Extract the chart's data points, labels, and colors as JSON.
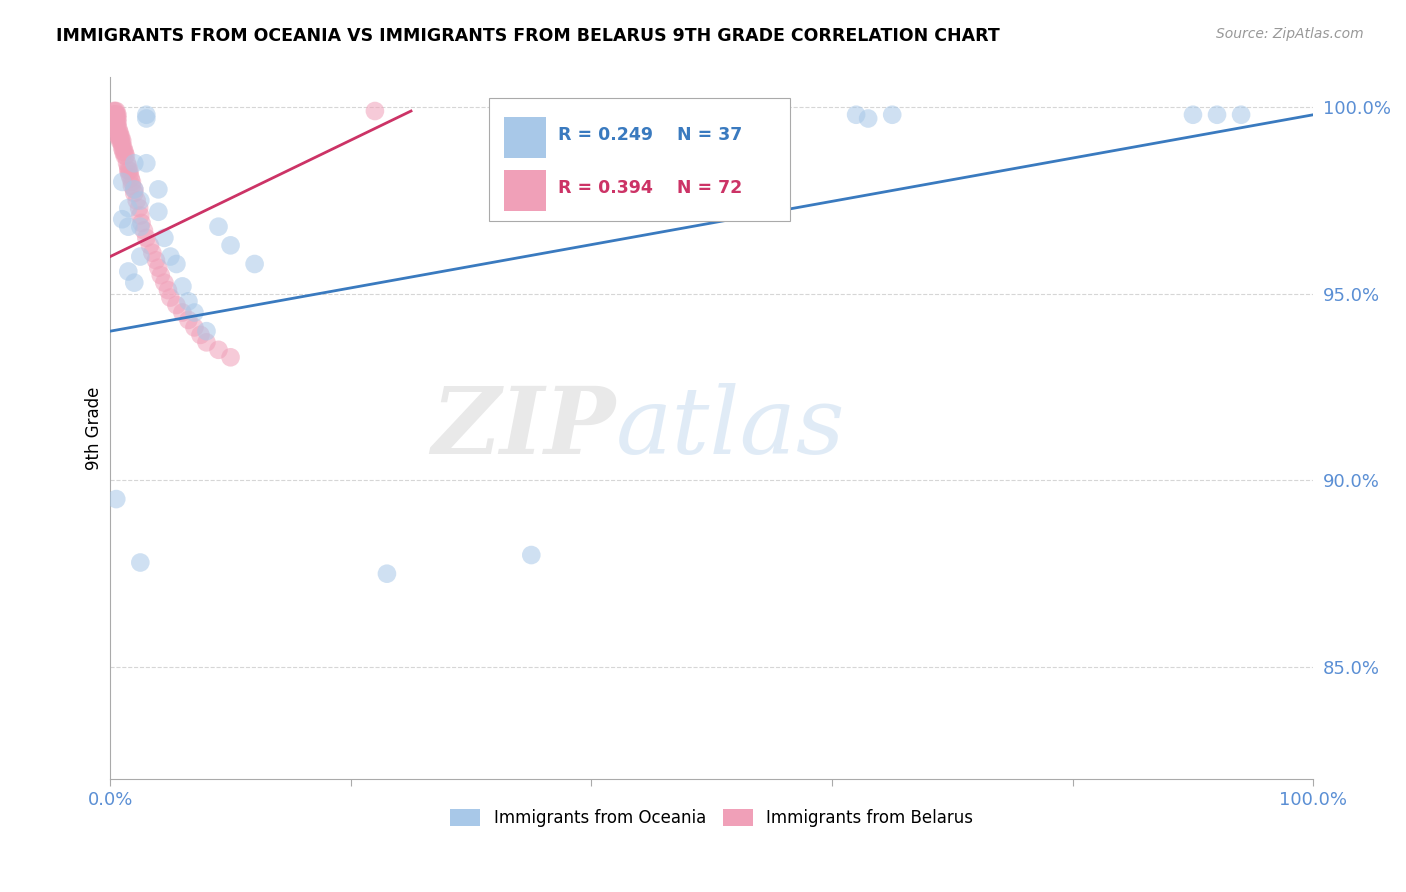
{
  "title": "IMMIGRANTS FROM OCEANIA VS IMMIGRANTS FROM BELARUS 9TH GRADE CORRELATION CHART",
  "source": "Source: ZipAtlas.com",
  "ylabel": "9th Grade",
  "xlim": [
    0.0,
    1.0
  ],
  "ylim": [
    0.82,
    1.008
  ],
  "yticks": [
    0.85,
    0.9,
    0.95,
    1.0
  ],
  "ytick_labels": [
    "85.0%",
    "90.0%",
    "95.0%",
    "100.0%"
  ],
  "xticks": [
    0.0,
    0.2,
    0.4,
    0.6,
    0.8,
    1.0
  ],
  "xtick_labels": [
    "0.0%",
    "",
    "",
    "",
    "",
    "100.0%"
  ],
  "legend_r_oceania": "R = 0.249",
  "legend_n_oceania": "N = 37",
  "legend_r_belarus": "R = 0.394",
  "legend_n_belarus": "N = 72",
  "legend_label_oceania": "Immigrants from Oceania",
  "legend_label_belarus": "Immigrants from Belarus",
  "color_oceania": "#a8c8e8",
  "color_belarus": "#f0a0b8",
  "color_line_oceania": "#3a7abf",
  "color_line_belarus": "#cc3366",
  "color_tick": "#5b8fd4",
  "watermark_zip": "ZIP",
  "watermark_atlas": "atlas",
  "oceania_x": [
    0.005,
    0.01,
    0.01,
    0.015,
    0.015,
    0.02,
    0.02,
    0.025,
    0.025,
    0.025,
    0.03,
    0.03,
    0.03,
    0.04,
    0.04,
    0.045,
    0.05,
    0.055,
    0.06,
    0.065,
    0.07,
    0.08,
    0.09,
    0.1,
    0.12,
    0.015,
    0.02,
    0.025,
    0.23,
    0.35,
    0.38,
    0.62,
    0.63,
    0.65,
    0.9,
    0.92,
    0.94
  ],
  "oceania_y": [
    0.895,
    0.97,
    0.98,
    0.973,
    0.968,
    0.985,
    0.978,
    0.975,
    0.968,
    0.96,
    0.998,
    0.997,
    0.985,
    0.978,
    0.972,
    0.965,
    0.96,
    0.958,
    0.952,
    0.948,
    0.945,
    0.94,
    0.968,
    0.963,
    0.958,
    0.956,
    0.953,
    0.878,
    0.875,
    0.88,
    0.998,
    0.998,
    0.997,
    0.998,
    0.998,
    0.998,
    0.998
  ],
  "belarus_x": [
    0.002,
    0.002,
    0.002,
    0.003,
    0.003,
    0.003,
    0.003,
    0.004,
    0.004,
    0.004,
    0.004,
    0.005,
    0.005,
    0.005,
    0.005,
    0.005,
    0.005,
    0.005,
    0.005,
    0.006,
    0.006,
    0.006,
    0.006,
    0.007,
    0.007,
    0.007,
    0.008,
    0.008,
    0.008,
    0.009,
    0.009,
    0.01,
    0.01,
    0.01,
    0.011,
    0.011,
    0.012,
    0.012,
    0.013,
    0.014,
    0.015,
    0.015,
    0.016,
    0.016,
    0.017,
    0.018,
    0.018,
    0.02,
    0.02,
    0.022,
    0.024,
    0.025,
    0.026,
    0.028,
    0.03,
    0.033,
    0.035,
    0.038,
    0.04,
    0.042,
    0.045,
    0.048,
    0.05,
    0.055,
    0.06,
    0.065,
    0.07,
    0.075,
    0.08,
    0.09,
    0.1,
    0.22
  ],
  "belarus_y": [
    0.998,
    0.997,
    0.996,
    0.999,
    0.998,
    0.997,
    0.996,
    0.999,
    0.998,
    0.997,
    0.996,
    0.999,
    0.998,
    0.998,
    0.997,
    0.996,
    0.995,
    0.994,
    0.993,
    0.998,
    0.997,
    0.996,
    0.995,
    0.994,
    0.993,
    0.992,
    0.993,
    0.992,
    0.991,
    0.992,
    0.991,
    0.991,
    0.99,
    0.989,
    0.989,
    0.988,
    0.988,
    0.987,
    0.987,
    0.985,
    0.984,
    0.983,
    0.983,
    0.982,
    0.981,
    0.98,
    0.979,
    0.978,
    0.977,
    0.975,
    0.973,
    0.971,
    0.969,
    0.967,
    0.965,
    0.963,
    0.961,
    0.959,
    0.957,
    0.955,
    0.953,
    0.951,
    0.949,
    0.947,
    0.945,
    0.943,
    0.941,
    0.939,
    0.937,
    0.935,
    0.933,
    0.999
  ],
  "line_oceania_x0": 0.0,
  "line_oceania_y0": 0.94,
  "line_oceania_x1": 1.0,
  "line_oceania_y1": 0.998,
  "line_belarus_x0": 0.0,
  "line_belarus_y0": 0.96,
  "line_belarus_x1": 0.25,
  "line_belarus_y1": 0.999
}
